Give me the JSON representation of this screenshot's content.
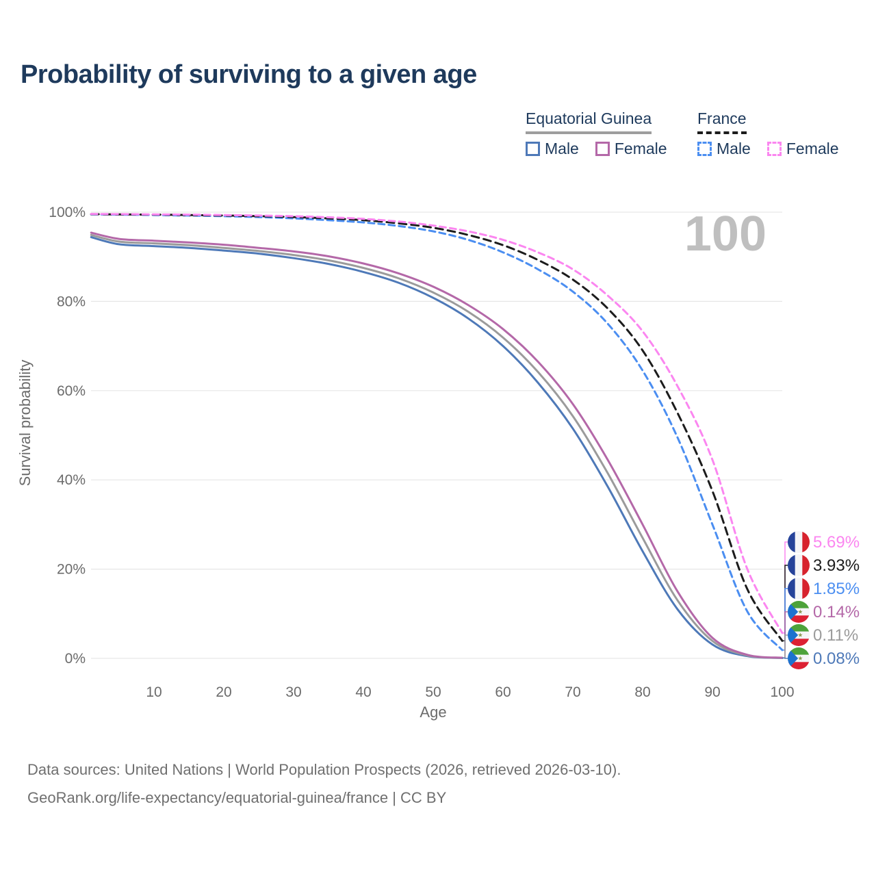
{
  "title": "Probability of surviving to a given age",
  "watermark_age": "100",
  "legend": {
    "groups": [
      {
        "label": "Equatorial Guinea",
        "underline_style": "solid",
        "underline_color": "#9e9e9e",
        "items": [
          {
            "label": "Male",
            "color": "#4e79b8",
            "style": "solid"
          },
          {
            "label": "Female",
            "color": "#b468a8",
            "style": "solid"
          }
        ]
      },
      {
        "label": "France",
        "underline_style": "dashed",
        "underline_color": "#1c1c1c",
        "items": [
          {
            "label": "Male",
            "color": "#4b8ef1",
            "style": "dashed"
          },
          {
            "label": "Female",
            "color": "#fb86f0",
            "style": "dashed"
          }
        ]
      }
    ]
  },
  "chart_data": {
    "type": "line",
    "title": "Probability of surviving to a given age",
    "xlabel": "Age",
    "ylabel": "Survival probability",
    "xlim": [
      0,
      100
    ],
    "ylim": [
      0,
      100
    ],
    "grid": "horizontal",
    "gridline_color": "#e6e6e6",
    "x_ticks": [
      {
        "v": 10,
        "label": "10"
      },
      {
        "v": 20,
        "label": "20"
      },
      {
        "v": 30,
        "label": "30"
      },
      {
        "v": 40,
        "label": "40"
      },
      {
        "v": 50,
        "label": "50"
      },
      {
        "v": 60,
        "label": "60"
      },
      {
        "v": 70,
        "label": "70"
      },
      {
        "v": 80,
        "label": "80"
      },
      {
        "v": 90,
        "label": "90"
      },
      {
        "v": 100,
        "label": "100"
      }
    ],
    "y_ticks": [
      {
        "v": 0,
        "label": "0%"
      },
      {
        "v": 20,
        "label": "20%"
      },
      {
        "v": 40,
        "label": "40%"
      },
      {
        "v": 60,
        "label": "60%"
      },
      {
        "v": 80,
        "label": "80%"
      },
      {
        "v": 100,
        "label": "100%"
      }
    ],
    "x": [
      1,
      5,
      10,
      15,
      20,
      25,
      30,
      35,
      40,
      45,
      50,
      55,
      60,
      65,
      70,
      75,
      80,
      85,
      90,
      95,
      100
    ],
    "series": [
      {
        "name": "France — Female",
        "country": "France",
        "sex": "Female",
        "style": "dashed",
        "dash": [
          9,
          6
        ],
        "color": "#fb86f0",
        "flag": "france-flag-icon",
        "end_label": "5.69%",
        "values": [
          99.6,
          99.55,
          99.5,
          99.45,
          99.35,
          99.25,
          99.1,
          98.85,
          98.5,
          97.9,
          97.0,
          95.7,
          93.8,
          91.0,
          87.2,
          81.3,
          73.3,
          61.0,
          44.5,
          20.0,
          5.69
        ]
      },
      {
        "name": "France — Both sexes",
        "country": "France",
        "sex": "Both",
        "style": "dashed",
        "dash": [
          11,
          7
        ],
        "color": "#1c1c1c",
        "flag": "france-flag-icon",
        "end_label": "3.93%",
        "values": [
          99.55,
          99.5,
          99.45,
          99.35,
          99.25,
          99.1,
          98.9,
          98.6,
          98.2,
          97.5,
          96.5,
          94.9,
          92.6,
          89.3,
          84.9,
          78.4,
          69.0,
          55.0,
          37.5,
          15.5,
          3.93
        ]
      },
      {
        "name": "France — Male",
        "country": "France",
        "sex": "Male",
        "style": "dashed",
        "dash": [
          9,
          6
        ],
        "color": "#4b8ef1",
        "flag": "france-flag-icon",
        "end_label": "1.85%",
        "values": [
          99.5,
          99.45,
          99.35,
          99.25,
          99.1,
          98.9,
          98.6,
          98.2,
          97.7,
          96.9,
          95.7,
          93.8,
          91.0,
          87.2,
          82.2,
          75.0,
          64.5,
          49.5,
          30.0,
          10.5,
          1.85
        ]
      },
      {
        "name": "Equatorial Guinea — Female",
        "country": "Equatorial Guinea",
        "sex": "Female",
        "style": "solid",
        "dash": null,
        "color": "#b468a8",
        "flag": "equatorial-guinea-flag-icon",
        "end_label": "0.14%",
        "values": [
          95.4,
          94.0,
          93.6,
          93.2,
          92.7,
          92.0,
          91.2,
          90.1,
          88.5,
          86.3,
          83.3,
          79.2,
          73.8,
          66.5,
          57.0,
          44.5,
          30.0,
          15.0,
          4.6,
          0.8,
          0.14
        ]
      },
      {
        "name": "Equatorial Guinea — Both sexes",
        "country": "Equatorial Guinea",
        "sex": "Both",
        "style": "solid",
        "dash": null,
        "color": "#9b9b9b",
        "flag": "equatorial-guinea-flag-icon",
        "end_label": "0.11%",
        "values": [
          94.9,
          93.4,
          93.0,
          92.6,
          92.0,
          91.3,
          90.4,
          89.2,
          87.5,
          85.2,
          82.0,
          77.7,
          71.9,
          64.2,
          54.3,
          41.5,
          27.0,
          13.0,
          3.9,
          0.65,
          0.11
        ]
      },
      {
        "name": "Equatorial Guinea — Male",
        "country": "Equatorial Guinea",
        "sex": "Male",
        "style": "solid",
        "dash": null,
        "color": "#4e79b8",
        "flag": "equatorial-guinea-flag-icon",
        "end_label": "0.08%",
        "values": [
          94.4,
          92.8,
          92.4,
          92.0,
          91.4,
          90.7,
          89.7,
          88.4,
          86.6,
          84.2,
          80.8,
          76.2,
          70.0,
          61.8,
          51.5,
          38.5,
          24.0,
          11.0,
          3.1,
          0.5,
          0.08
        ]
      }
    ]
  },
  "footer": {
    "line1": "Data sources: United Nations | World Population Prospects (2026, retrieved 2026-03-10).",
    "line2": "GeoRank.org/life-expectancy/equatorial-guinea/france | CC BY"
  }
}
